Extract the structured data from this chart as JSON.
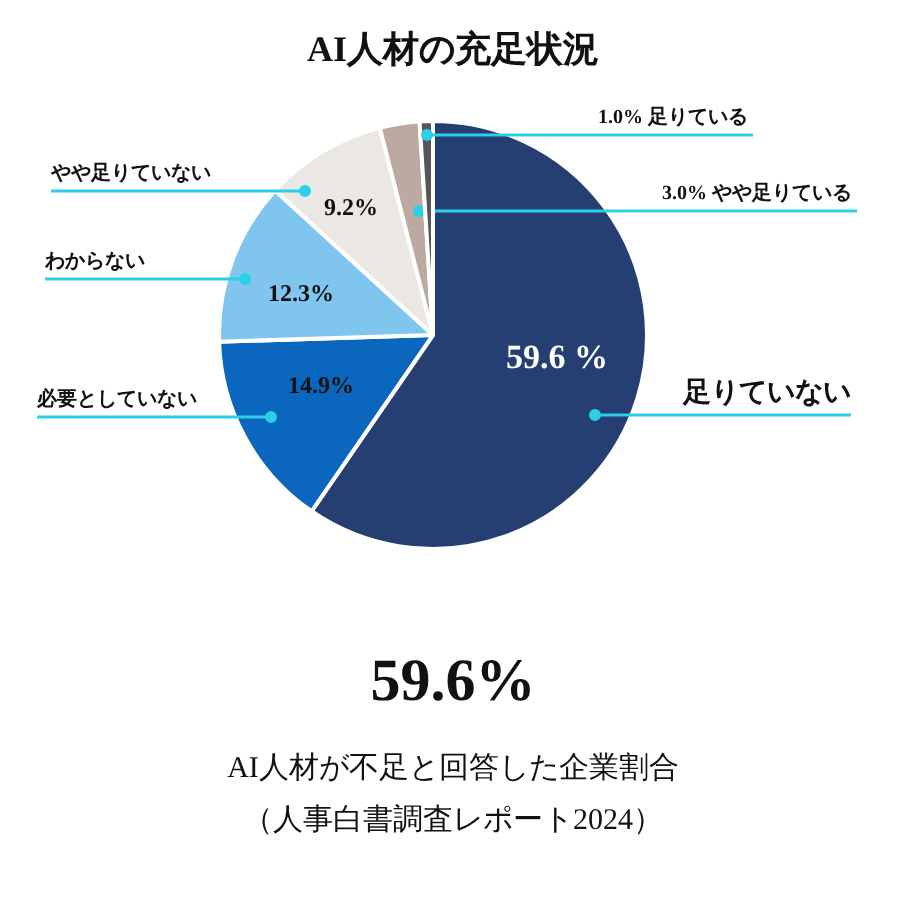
{
  "chart_data": {
    "type": "pie",
    "title": "AI人材の充足状況",
    "categories": [
      "足りていない",
      "必要としていない",
      "わからない",
      "やや足りていない",
      "やや足りている",
      "足りている"
    ],
    "values": [
      59.6,
      14.9,
      12.3,
      9.2,
      3.0,
      1.0
    ],
    "colors": [
      "#253f72",
      "#0a67bd",
      "#7fc5ee",
      "#ebe7e3",
      "#bca9a1",
      "#55555a"
    ],
    "value_labels": [
      "59.6 %",
      "14.9%",
      "12.3%",
      "9.2%",
      "3.0%",
      "1.0%"
    ],
    "annotations": [
      "59.6%",
      "AI人材が不足と回答した企業割合",
      "（人事白書調査レポート2024）"
    ]
  }
}
